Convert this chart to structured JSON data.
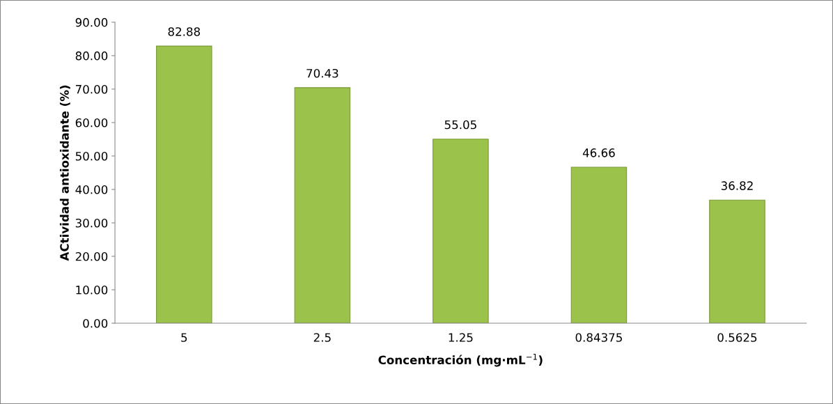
{
  "chart_data": {
    "type": "bar",
    "xlabel": "Concentración (mg·mL$^{−1}$)",
    "ylabel": "ACtividad antioxidante (%)",
    "categories": [
      "5",
      "2.5",
      "1.25",
      "0.84375",
      "0.5625"
    ],
    "values": [
      82.88,
      70.43,
      55.05,
      46.66,
      36.82
    ],
    "color": "#9bc24a",
    "data_labels": true,
    "grid": false,
    "legend": false,
    "ylim": [
      0,
      90
    ],
    "yticks": [
      {
        "value": 0,
        "label": "0.00"
      },
      {
        "value": 10,
        "label": "10.00"
      },
      {
        "value": 20,
        "label": "20.00"
      },
      {
        "value": 30,
        "label": "30.00"
      },
      {
        "value": 40,
        "label": "40.00"
      },
      {
        "value": 50,
        "label": "50.00"
      },
      {
        "value": 60,
        "label": "60.00"
      },
      {
        "value": 70,
        "label": "70.00"
      },
      {
        "value": 80,
        "label": "80.00"
      },
      {
        "value": 90,
        "label": "90.00"
      }
    ]
  }
}
